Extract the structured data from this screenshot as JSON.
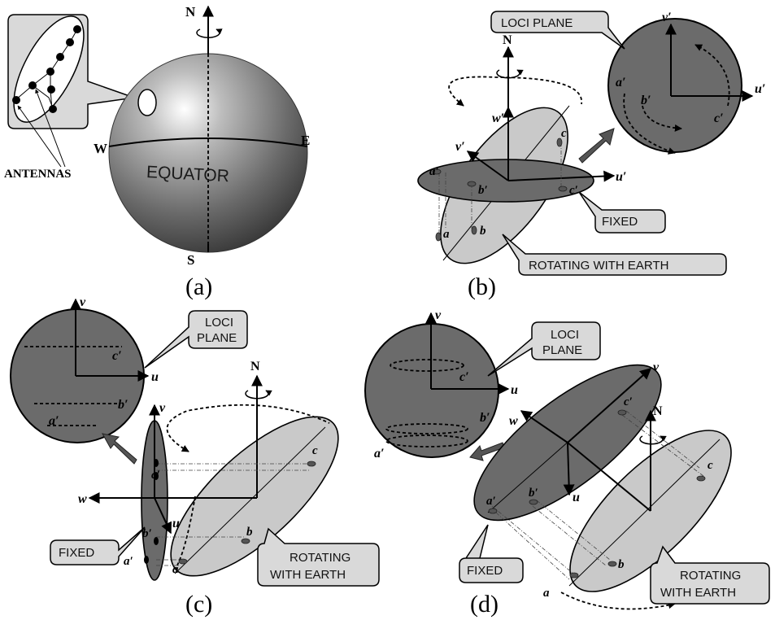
{
  "panel_a": {
    "label": "(a)",
    "compass": {
      "north": "N",
      "south": "S",
      "east": "E",
      "west": "W"
    },
    "equator_label": "EQUATOR",
    "antennas_label": "ANTENNAS"
  },
  "panel_b": {
    "label": "(b)",
    "north": "N",
    "axes": {
      "u": "u′",
      "v": "v′",
      "w": "w′"
    },
    "points": {
      "a": "a",
      "b": "b",
      "c": "c",
      "a_prime": "a′",
      "b_prime": "b′",
      "c_prime": "c′"
    },
    "loci_plane": "LOCI PLANE",
    "fixed": "FIXED",
    "rotating": "ROTATING WITH EARTH"
  },
  "panel_c": {
    "label": "(c)",
    "north": "N",
    "axes": {
      "u": "u",
      "v": "v",
      "w": "w"
    },
    "points": {
      "a": "a",
      "b": "b",
      "c": "c",
      "a_prime": "a′",
      "b_prime": "b′",
      "c_prime": "c′"
    },
    "loci_plane_line1": "LOCI",
    "loci_plane_line2": "PLANE",
    "fixed": "FIXED",
    "rotating_line1": "ROTATING",
    "rotating_line2": "WITH EARTH"
  },
  "panel_d": {
    "label": "(d)",
    "north": "N",
    "axes": {
      "u": "u",
      "v": "v",
      "w": "w"
    },
    "points": {
      "a": "a",
      "b": "b",
      "c": "c",
      "a_prime": "a′",
      "b_prime": "b′",
      "c_prime": "c′"
    },
    "loci_plane_line1": "LOCI",
    "loci_plane_line2": "PLANE",
    "fixed": "FIXED",
    "rotating_line1": "ROTATING",
    "rotating_line2": "WITH EARTH"
  }
}
